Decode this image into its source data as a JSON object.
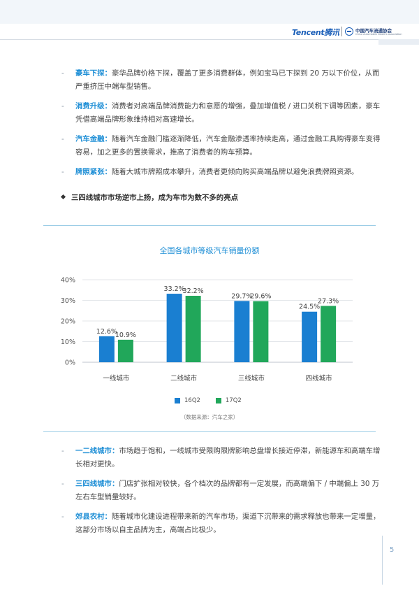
{
  "header": {
    "tencent_logo": "Tencent腾讯",
    "assoc_cn": "中国汽车流通协会",
    "assoc_en": "China Automobile Dealers Association"
  },
  "bullets_top": [
    {
      "keyword": "豪车下探：",
      "text": "豪华品牌价格下探，覆盖了更多消费群体，例如宝马已下探到 20 万以下价位，从而严重挤压中端车型销售。"
    },
    {
      "keyword": "消费升级：",
      "text": "消费者对高端品牌消费能力和意愿的增强，叠加增值税 / 进口关税下调等因素，豪车凭借高端品牌形象维持相对高速增长。"
    },
    {
      "keyword": "汽车金融：",
      "text": "随着汽车金融门槛逐渐降低，汽车金融渗透率持续走高，通过金融工具购得豪车变得容易，加之更多的置换需求，推高了消费者的购车预算。"
    },
    {
      "keyword": "牌照紧张：",
      "text": "随着大城市牌照成本攀升，消费者更倾向购买高端品牌以避免浪费牌照资源。"
    }
  ],
  "section_heading": "三四线城市市场逆市上扬，成为车市为数不多的亮点",
  "chart_data": {
    "type": "bar",
    "title": "全国各城市等级汽车销量份额",
    "categories": [
      "一线城市",
      "二线城市",
      "三线城市",
      "四线城市"
    ],
    "series": [
      {
        "name": "16Q2",
        "values": [
          12.6,
          33.2,
          29.7,
          24.5
        ],
        "labels": [
          "12.6%",
          "33.2%",
          "29.7%",
          "24.5%"
        ]
      },
      {
        "name": "17Q2",
        "values": [
          10.9,
          32.2,
          29.6,
          27.3
        ],
        "labels": [
          "10.9%",
          "32.2%",
          "29.6%",
          "27.3%"
        ]
      }
    ],
    "yticks": [
      "0%",
      "10%",
      "20%",
      "30%",
      "40%"
    ],
    "ylim": [
      0,
      40
    ],
    "grid": true,
    "legend": "bottom-center",
    "colors": {
      "16Q2": "#1a7fd1",
      "17Q2": "#21a75a"
    },
    "source": "（数据来源：汽车之家）"
  },
  "bullets_bottom": [
    {
      "keyword": "一二线城市：",
      "text": "市场趋于饱和，一线城市受限购限牌影响总盘增长接近停滞，新能源车和高端车增长相对更快。"
    },
    {
      "keyword": "三四线城市：",
      "text": "门店扩张相对较快，各个档次的品牌都有一定发展，而高端偏下 / 中端偏上 30 万左右车型销量较好。"
    },
    {
      "keyword": "郊县农村：",
      "text": "随着城市化建设进程带来新的汽车市场，渠道下沉带来的需求释放也带来一定增量，这部分市场以自主品牌为主，高端占比极少。"
    }
  ],
  "page_number": "5",
  "colors": {
    "accent": "#1f8fd6",
    "rule": "#9ccde6"
  }
}
